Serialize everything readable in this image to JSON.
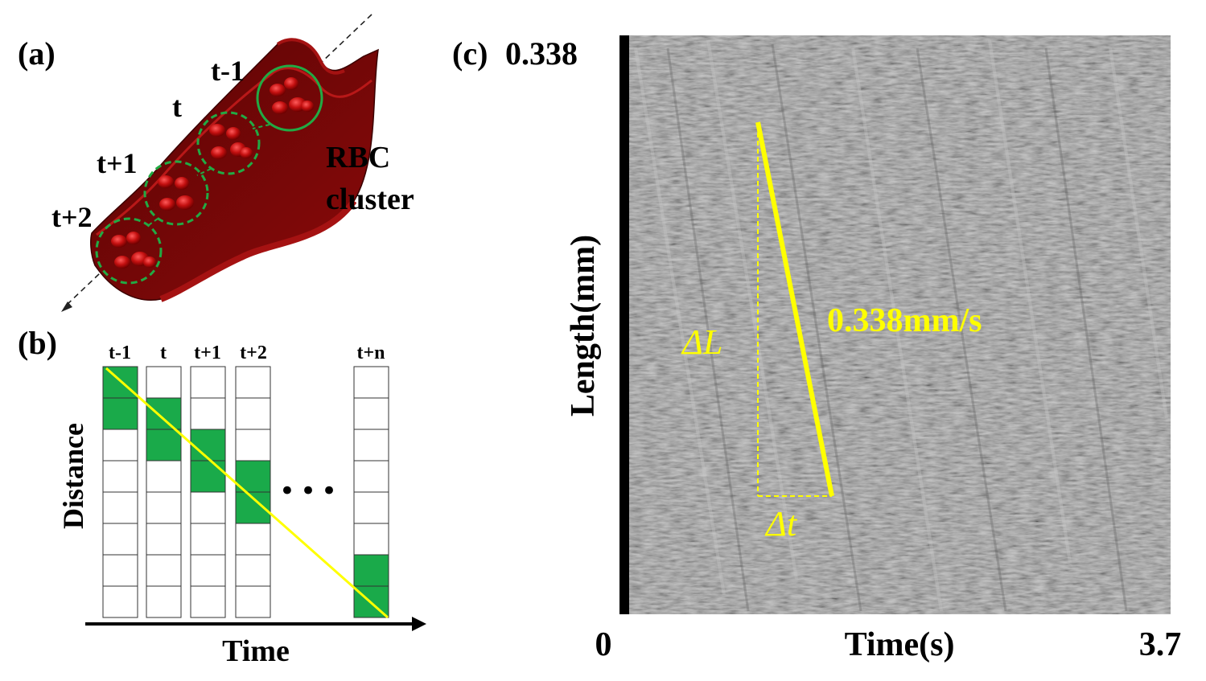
{
  "panel_a": {
    "label": "(a)",
    "time_labels": [
      "t-1",
      "t",
      "t+1",
      "t+2"
    ],
    "cluster_label_line1": "RBC",
    "cluster_label_line2": "cluster"
  },
  "panel_b": {
    "label": "(b)",
    "columns": [
      "t-1",
      "t",
      "t+1",
      "t+2",
      "t+n"
    ],
    "ellipsis": "•••",
    "ylabel": "Distance",
    "xlabel": "Time",
    "filled_cells": [
      {
        "column": "t-1",
        "rows": [
          0,
          1
        ]
      },
      {
        "column": "t",
        "rows": [
          1,
          2
        ]
      },
      {
        "column": "t+1",
        "rows": [
          2,
          3
        ]
      },
      {
        "column": "t+2",
        "rows": [
          3,
          4
        ]
      },
      {
        "column": "t+n",
        "rows": [
          6,
          7
        ]
      }
    ],
    "rows_per_column": 8
  },
  "panel_c": {
    "label": "(c)",
    "y_max_label": "0.338",
    "ylabel": "Length(mm)",
    "xlabel": "Time(s)",
    "x_min_label": "0",
    "x_max_label": "3.7",
    "delta_L": "ΔL",
    "delta_t": "Δt",
    "velocity_label": "0.338mm/s"
  },
  "colors": {
    "vessel": "#8b0a0a",
    "rbc": "#c41010",
    "cluster_outline": "#22aa44",
    "cell_fill": "#1aaa4a",
    "trace": "#ffff00",
    "kymograph_bg": "#8e8e8e"
  }
}
